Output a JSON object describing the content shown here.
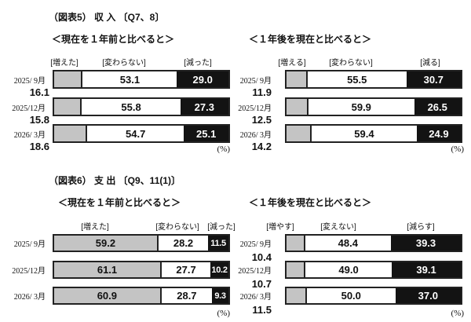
{
  "fig5": {
    "title": "（図表5） 収 入 〔Q7、8〕"
  },
  "fig6": {
    "title": "（図表6） 支 出 〔Q9、11(1)〕"
  },
  "percent_label": "(%)",
  "colors": {
    "segment_increase": "#c4c4c4",
    "segment_unchanged": "#ffffff",
    "segment_decrease": "#131313",
    "bar_border": "#222222"
  },
  "charts": [
    {
      "id": "income-vs-year-ago",
      "subtitle": "＜現在を１年前と比べると＞",
      "legend": [
        "[増えた]",
        "[変わらない]",
        "[減った]"
      ],
      "rows": [
        {
          "period": "2025/ 9月",
          "values": [
            "16.1",
            "53.1",
            "29.0"
          ]
        },
        {
          "period": "2025/12月",
          "values": [
            "15.8",
            "55.8",
            "27.3"
          ]
        },
        {
          "period": "2026/ 3月",
          "values": [
            "18.6",
            "54.7",
            "25.1"
          ]
        }
      ]
    },
    {
      "id": "income-year-ahead",
      "subtitle": "＜１年後を現在と比べると＞",
      "legend": [
        "[増える]",
        "[変わらない]",
        "[減る]"
      ],
      "rows": [
        {
          "period": "2025/ 9月",
          "values": [
            "11.9",
            "55.5",
            "30.7"
          ]
        },
        {
          "period": "2025/12月",
          "values": [
            "12.5",
            "59.9",
            "26.5"
          ]
        },
        {
          "period": "2026/ 3月",
          "values": [
            "14.2",
            "59.4",
            "24.9"
          ]
        }
      ]
    },
    {
      "id": "spending-vs-year-ago",
      "subtitle": "＜現在を１年前と比べると＞",
      "legend": [
        "[増えた]",
        "[変わらない]",
        "[減った]"
      ],
      "rows": [
        {
          "period": "2025/ 9月",
          "values": [
            "59.2",
            "28.2",
            "11.5"
          ]
        },
        {
          "period": "2025/12月",
          "values": [
            "61.1",
            "27.7",
            "10.2"
          ]
        },
        {
          "period": "2026/ 3月",
          "values": [
            "60.9",
            "28.7",
            "9.3"
          ]
        }
      ]
    },
    {
      "id": "spending-year-ahead",
      "subtitle": "＜１年後を現在と比べると＞",
      "legend": [
        "[増やす]",
        "[変えない]",
        "[減らす]"
      ],
      "rows": [
        {
          "period": "2025/ 9月",
          "values": [
            "10.4",
            "48.4",
            "39.3"
          ]
        },
        {
          "period": "2025/12月",
          "values": [
            "10.7",
            "49.0",
            "39.1"
          ]
        },
        {
          "period": "2026/ 3月",
          "values": [
            "11.5",
            "50.0",
            "37.0"
          ]
        }
      ]
    }
  ],
  "chart_data": [
    {
      "type": "bar",
      "orientation": "horizontal",
      "stacked": true,
      "title": "（図表5） 収 入 〔Q7、8〕",
      "subtitle": "＜現在を１年前と比べると＞",
      "categories": [
        "2025/ 9月",
        "2025/12月",
        "2026/ 3月"
      ],
      "series": [
        {
          "name": "増えた",
          "values": [
            16.1,
            15.8,
            18.6
          ]
        },
        {
          "name": "変わらない",
          "values": [
            53.1,
            55.8,
            54.7
          ]
        },
        {
          "name": "減った",
          "values": [
            29.0,
            27.3,
            25.1
          ]
        }
      ],
      "unit": "%",
      "xlim": [
        0,
        100
      ],
      "legend_position": "top"
    },
    {
      "type": "bar",
      "orientation": "horizontal",
      "stacked": true,
      "title": "（図表5） 収 入 〔Q7、8〕",
      "subtitle": "＜１年後を現在と比べると＞",
      "categories": [
        "2025/ 9月",
        "2025/12月",
        "2026/ 3月"
      ],
      "series": [
        {
          "name": "増える",
          "values": [
            11.9,
            12.5,
            14.2
          ]
        },
        {
          "name": "変わらない",
          "values": [
            55.5,
            59.9,
            59.4
          ]
        },
        {
          "name": "減る",
          "values": [
            30.7,
            26.5,
            24.9
          ]
        }
      ],
      "unit": "%",
      "xlim": [
        0,
        100
      ],
      "legend_position": "top"
    },
    {
      "type": "bar",
      "orientation": "horizontal",
      "stacked": true,
      "title": "（図表6） 支 出 〔Q9、11(1)〕",
      "subtitle": "＜現在を１年前と比べると＞",
      "categories": [
        "2025/ 9月",
        "2025/12月",
        "2026/ 3月"
      ],
      "series": [
        {
          "name": "増えた",
          "values": [
            59.2,
            61.1,
            60.9
          ]
        },
        {
          "name": "変わらない",
          "values": [
            28.2,
            27.7,
            28.7
          ]
        },
        {
          "name": "減った",
          "values": [
            11.5,
            10.2,
            9.3
          ]
        }
      ],
      "unit": "%",
      "xlim": [
        0,
        100
      ],
      "legend_position": "top"
    },
    {
      "type": "bar",
      "orientation": "horizontal",
      "stacked": true,
      "title": "（図表6） 支 出 〔Q9、11(1)〕",
      "subtitle": "＜１年後を現在と比べると＞",
      "categories": [
        "2025/ 9月",
        "2025/12月",
        "2026/ 3月"
      ],
      "series": [
        {
          "name": "増やす",
          "values": [
            10.4,
            10.7,
            11.5
          ]
        },
        {
          "name": "変えない",
          "values": [
            48.4,
            49.0,
            50.0
          ]
        },
        {
          "name": "減らす",
          "values": [
            39.3,
            39.1,
            37.0
          ]
        }
      ],
      "unit": "%",
      "xlim": [
        0,
        100
      ],
      "legend_position": "top"
    }
  ]
}
